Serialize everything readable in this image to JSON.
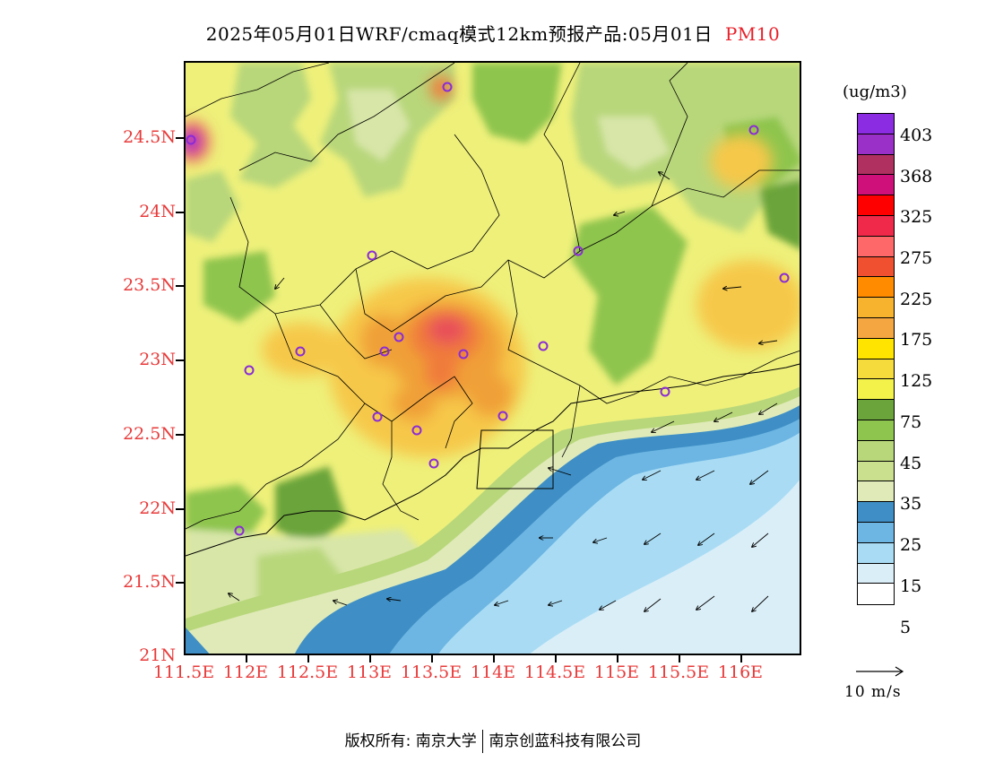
{
  "title": {
    "main": "2025年05月01日WRF/cmaq模式12km预报产品:05月01日",
    "variable": "PM10"
  },
  "map": {
    "lat_labels": [
      "24.5N",
      "24N",
      "23.5N",
      "23N",
      "22.5N",
      "22N",
      "21.5N",
      "21N"
    ],
    "lon_labels": [
      "111.5E",
      "112E",
      "112.5E",
      "113E",
      "113.5E",
      "114E",
      "114.5E",
      "115E",
      "115.5E",
      "116E"
    ],
    "extent": {
      "lon_min": 111.5,
      "lon_max": 116.5,
      "lat_min": 21.0,
      "lat_max": 25.0
    },
    "land_color": "#eef07a",
    "sea_colors": [
      "#daeef8",
      "#a9dcf4",
      "#6db6e3",
      "#3f8fc6"
    ],
    "hotspot_colors": [
      "#f6c84a",
      "#f0a038",
      "#f07a3a",
      "#e8505a"
    ],
    "green_colors": [
      "#d8e6a8",
      "#b8d77a",
      "#8ec54e",
      "#6aa43a"
    ],
    "station_color": "#8a2bd6",
    "wind_vector_note": "arrows show wind direction"
  },
  "legend": {
    "unit": "(ug/m3)",
    "labels": [
      "403",
      "368",
      "325",
      "275",
      "225",
      "175",
      "125",
      "75",
      "45",
      "35",
      "25",
      "15",
      "5"
    ],
    "colors": [
      "#8b2be2",
      "#9b30c8",
      "#b03060",
      "#d0107a",
      "#ff0000",
      "#f0284a",
      "#ff6868",
      "#f05030",
      "#ff8c00",
      "#f7b22e",
      "#f4a640",
      "#ffe400",
      "#f5dc3c",
      "#f2f24a",
      "#6aa43a",
      "#8ec54e",
      "#b8d77a",
      "#cbe08e",
      "#dfeab8",
      "#3f8fc6",
      "#6db6e3",
      "#a9dcf4",
      "#daeef8",
      "#ffffff"
    ],
    "wind_ref": "10 m/s"
  },
  "footer": {
    "copyright": "版权所有: 南京大学",
    "company": "南京创蓝科技有限公司"
  }
}
